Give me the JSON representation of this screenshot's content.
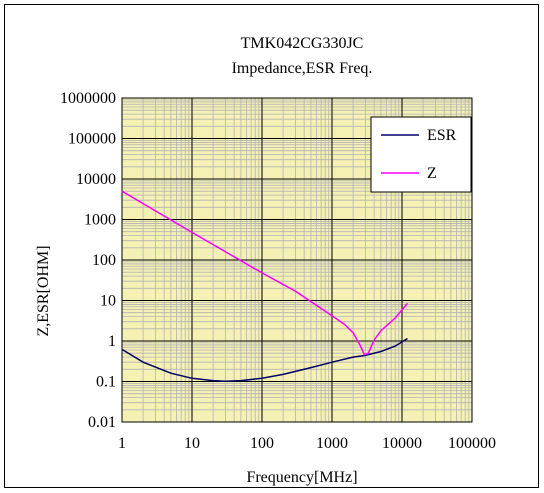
{
  "chart_data": {
    "type": "line",
    "title": "TMK042CG330JC",
    "subtitle": "Impedance,ESR Freq.",
    "xlabel": "Frequency[MHz]",
    "ylabel": "Z,ESR[OHM]",
    "x_scale": "log",
    "y_scale": "log",
    "xlim": [
      1,
      100000
    ],
    "ylim": [
      0.01,
      1000000
    ],
    "x_ticks": [
      "1",
      "10",
      "100",
      "1000",
      "10000",
      "100000"
    ],
    "y_ticks": [
      "1000000",
      "100000",
      "10000",
      "1000",
      "100",
      "10",
      "1",
      "0.1",
      "0.01"
    ],
    "grid": true,
    "plot_background": "#f5f0b4",
    "legend_position": "top-right",
    "series": [
      {
        "name": "ESR",
        "color": "#000066",
        "points": [
          [
            1,
            0.62
          ],
          [
            2,
            0.3
          ],
          [
            5,
            0.16
          ],
          [
            10,
            0.12
          ],
          [
            20,
            0.105
          ],
          [
            30,
            0.102
          ],
          [
            50,
            0.105
          ],
          [
            100,
            0.12
          ],
          [
            200,
            0.15
          ],
          [
            500,
            0.22
          ],
          [
            1000,
            0.3
          ],
          [
            2000,
            0.4
          ],
          [
            3000,
            0.44
          ],
          [
            5000,
            0.55
          ],
          [
            8000,
            0.75
          ],
          [
            12000,
            1.15
          ]
        ]
      },
      {
        "name": "Z",
        "color": "#ff00ff",
        "points": [
          [
            1,
            5000
          ],
          [
            10,
            480
          ],
          [
            100,
            48
          ],
          [
            300,
            17
          ],
          [
            1000,
            4.2
          ],
          [
            1500,
            2.6
          ],
          [
            2000,
            1.6
          ],
          [
            2500,
            0.8
          ],
          [
            2900,
            0.46
          ],
          [
            3300,
            0.5
          ],
          [
            4000,
            1.05
          ],
          [
            5000,
            1.8
          ],
          [
            8000,
            3.7
          ],
          [
            12000,
            8.5
          ]
        ]
      }
    ]
  }
}
